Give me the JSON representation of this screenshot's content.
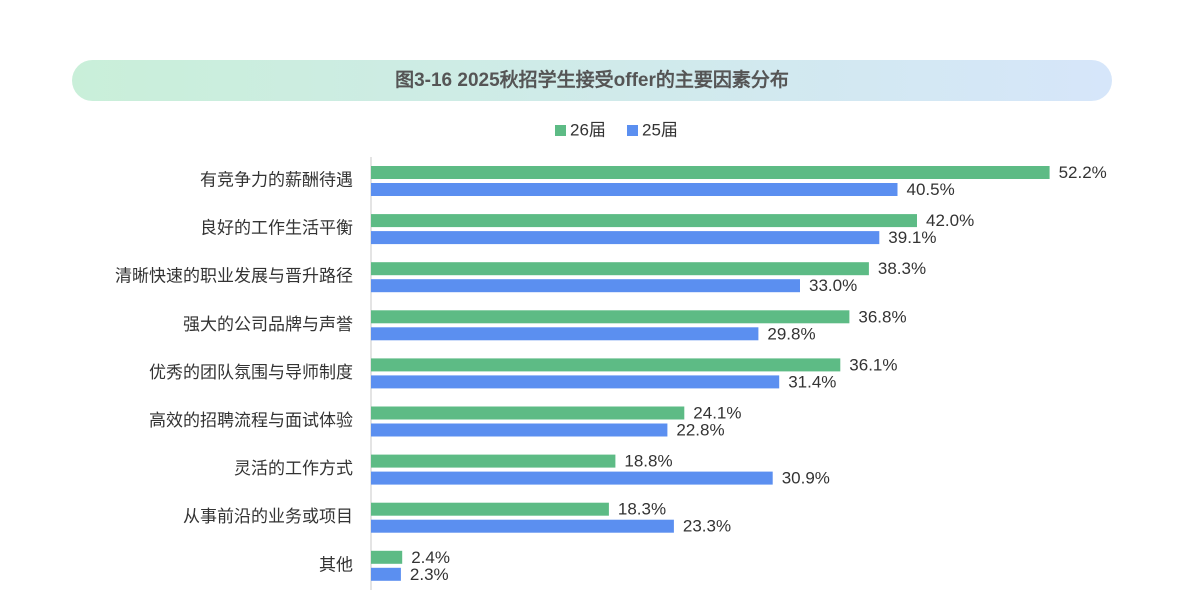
{
  "chart_data": {
    "type": "hbar",
    "title": "图3-16   2025秋招学生接受offer的主要因素分布",
    "categories": [
      "有竞争力的薪酬待遇",
      "良好的工作生活平衡",
      "清晰快速的职业发展与晋升路径",
      "强大的公司品牌与声誉",
      "优秀的团队氛围与导师制度",
      "高效的招聘流程与面试体验",
      "灵活的工作方式",
      "从事前沿的业务或项目",
      "其他"
    ],
    "series": [
      {
        "name": "26届",
        "color": "#5dbb85",
        "values": [
          52.2,
          42.0,
          38.3,
          36.8,
          36.1,
          24.1,
          18.8,
          18.3,
          2.4
        ],
        "value_labels": [
          "52.2%",
          "42.0%",
          "38.3%",
          "36.8%",
          "36.1%",
          "24.1%",
          "18.8%",
          "18.3%",
          "2.4%"
        ]
      },
      {
        "name": "25届",
        "color": "#5b8ff0",
        "values": [
          40.5,
          39.1,
          33.0,
          29.8,
          31.4,
          22.8,
          30.9,
          23.3,
          2.3
        ],
        "value_labels": [
          "40.5%",
          "39.1%",
          "33.0%",
          "29.8%",
          "31.4%",
          "22.8%",
          "30.9%",
          "23.3%",
          "2.3%"
        ]
      }
    ]
  }
}
